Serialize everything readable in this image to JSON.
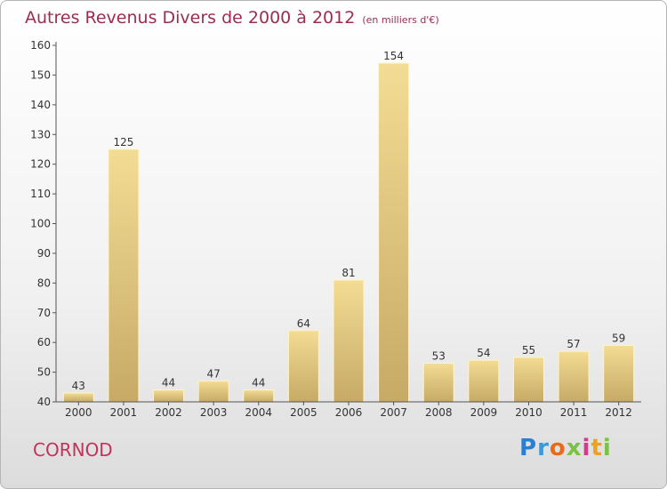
{
  "title": "Autres Revenus Divers de 2000 à 2012",
  "subtitle": "(en milliers d'€)",
  "commune": "CORNOD",
  "logo": {
    "text": "Proxiti",
    "letters": [
      "P",
      "r",
      "o",
      "x",
      "i",
      "t",
      "i"
    ],
    "colors": [
      "#2a7fd4",
      "#3a9ad9",
      "#e86a1a",
      "#7cc242",
      "#d83a8a",
      "#f0a020",
      "#7cc242"
    ]
  },
  "colors": {
    "bar_light": "#f3dc94",
    "bar_dark": "#c6aa66",
    "axis": "#555555",
    "title": "#9c2d4f",
    "commune": "#c0345c"
  },
  "chart_data": {
    "type": "bar",
    "categories": [
      "2000",
      "2001",
      "2002",
      "2003",
      "2004",
      "2005",
      "2006",
      "2007",
      "2008",
      "2009",
      "2010",
      "2011",
      "2012"
    ],
    "values": [
      43,
      125,
      44,
      47,
      44,
      64,
      81,
      154,
      53,
      54,
      55,
      57,
      59
    ],
    "ylim": [
      40,
      160
    ],
    "yticks": [
      40,
      50,
      60,
      70,
      80,
      90,
      100,
      110,
      120,
      130,
      140,
      150,
      160
    ],
    "grid": false,
    "legend": "none"
  }
}
